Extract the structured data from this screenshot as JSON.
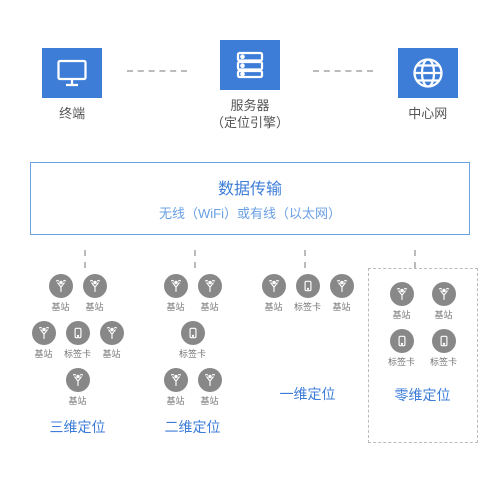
{
  "type": "network",
  "colors": {
    "primary": "#3d7dd8",
    "light_primary": "#6aa0e4",
    "node_fill": "#888888",
    "dash": "#bbbbbb",
    "text": "#555555",
    "background": "#ffffff"
  },
  "top": {
    "terminal": {
      "label": "终端",
      "icon": "monitor"
    },
    "server": {
      "label_line1": "服务器",
      "label_line2": "（定位引擎）",
      "icon": "server"
    },
    "network": {
      "label": "中心网",
      "icon": "globe"
    }
  },
  "transport": {
    "title": "数据传输",
    "subtitle": "无线（WiFi）或有线（以太网）"
  },
  "node_labels": {
    "station": "基站",
    "tag": "标签卡"
  },
  "clusters": [
    {
      "id": "3d",
      "title": "三维定位",
      "stations": 5,
      "tags": 1,
      "boxed": false
    },
    {
      "id": "2d",
      "title": "二维定位",
      "stations": 4,
      "tags": 1,
      "boxed": false
    },
    {
      "id": "1d",
      "title": "一维定位",
      "stations": 2,
      "tags": 1,
      "boxed": false
    },
    {
      "id": "0d",
      "title": "零维定位",
      "stations": 2,
      "tags": 2,
      "boxed": true
    }
  ]
}
